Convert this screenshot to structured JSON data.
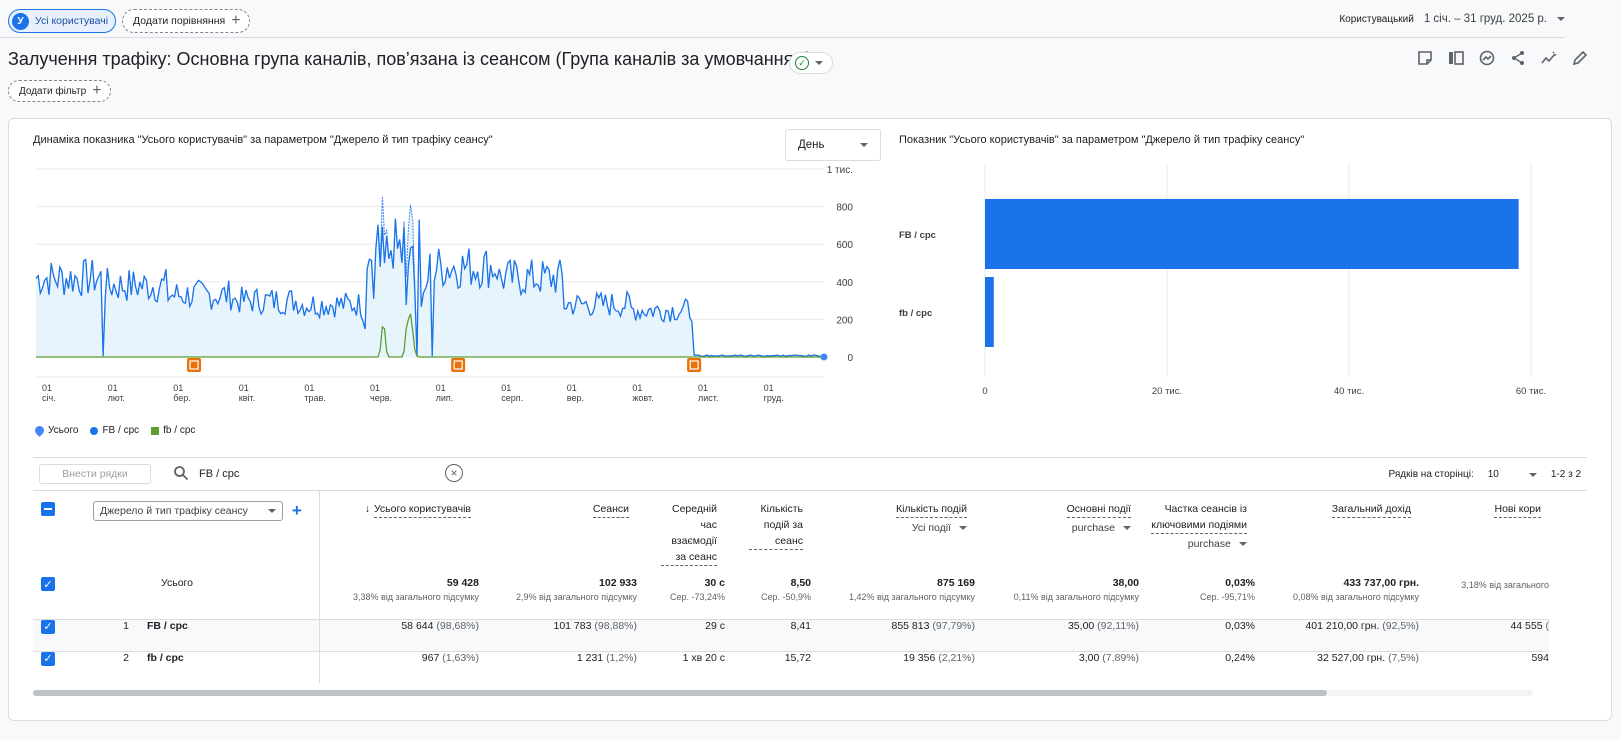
{
  "header": {
    "segment_chip": {
      "avatar": "У",
      "label": "Усі користувачі"
    },
    "compare_chip": "Додати порівняння",
    "mode": "Користувацький",
    "date_range": "1 січ. – 31 груд. 2025 р."
  },
  "report": {
    "title": "Залучення трафіку: Основна група каналів, пов’язана із сеансом (Група каналів за умовчанням)",
    "add_filter": "Додати фільтр",
    "toolbar_icons": [
      "note-icon",
      "compare-icon",
      "insights-icon",
      "share-icon",
      "trend-icon",
      "edit-icon"
    ]
  },
  "line_chart": {
    "title": "Динаміка показника \"Усього користувачів\" за параметром \"Джерело й тип трафіку сеансу\"",
    "granularity": "День",
    "y_ticks": [
      "1 тис.",
      "800",
      "600",
      "400",
      "200",
      "0"
    ],
    "x_ticks": [
      [
        "01",
        "січ."
      ],
      [
        "01",
        "лют."
      ],
      [
        "01",
        "бер."
      ],
      [
        "01",
        "квіт."
      ],
      [
        "01",
        "трав."
      ],
      [
        "01",
        "черв."
      ],
      [
        "01",
        "лип."
      ],
      [
        "01",
        "серп."
      ],
      [
        "01",
        "вер."
      ],
      [
        "01",
        "жовт."
      ],
      [
        "01",
        "лист."
      ],
      [
        "01",
        "груд."
      ]
    ],
    "legend": [
      {
        "label": "Усього",
        "color": "#4285f4",
        "shape": "drop"
      },
      {
        "label": "FB / cpc",
        "color": "#1a73e8",
        "shape": "dot"
      },
      {
        "label": "fb / cpc",
        "color": "#5a9e2f",
        "shape": "square"
      }
    ]
  },
  "bar_chart": {
    "title": "Показник \"Усього користувачів\" за параметром \"Джерело й тип трафіку сеансу\"",
    "x_ticks": [
      "0",
      "20 тис.",
      "40 тис.",
      "60 тис."
    ]
  },
  "chart_data": [
    {
      "type": "line",
      "x_range": [
        "2025-01-01",
        "2025-12-31"
      ],
      "ylim": [
        0,
        1000
      ],
      "series": [
        {
          "name": "Усього",
          "approx_profile_by_month": [
            {
              "month": "2025-01",
              "y": 420
            },
            {
              "month": "2025-02",
              "y": 380
            },
            {
              "month": "2025-03",
              "y": 330
            },
            {
              "month": "2025-04",
              "y": 300
            },
            {
              "month": "2025-05",
              "y": 280
            },
            {
              "month": "2025-06",
              "y": 560
            },
            {
              "month": "2025-07",
              "y": 480
            },
            {
              "month": "2025-08",
              "y": 420
            },
            {
              "month": "2025-09",
              "y": 280
            },
            {
              "month": "2025-10",
              "y": 250
            },
            {
              "month": "2025-11",
              "y": 8
            },
            {
              "month": "2025-12",
              "y": 4
            }
          ]
        },
        {
          "name": "FB / cpc",
          "approx_profile_by_month": [
            {
              "month": "2025-01",
              "y": 420
            },
            {
              "month": "2025-02",
              "y": 380
            },
            {
              "month": "2025-03",
              "y": 330
            },
            {
              "month": "2025-04",
              "y": 300
            },
            {
              "month": "2025-05",
              "y": 280
            },
            {
              "month": "2025-06",
              "y": 500
            },
            {
              "month": "2025-07",
              "y": 480
            },
            {
              "month": "2025-08",
              "y": 420
            },
            {
              "month": "2025-09",
              "y": 280
            },
            {
              "month": "2025-10",
              "y": 250
            },
            {
              "month": "2025-11",
              "y": 8
            },
            {
              "month": "2025-12",
              "y": 4
            }
          ]
        },
        {
          "name": "fb / cpc",
          "approx_profile_by_month": [
            {
              "month": "2025-01",
              "y": 0
            },
            {
              "month": "2025-02",
              "y": 0
            },
            {
              "month": "2025-03",
              "y": 0
            },
            {
              "month": "2025-04",
              "y": 0
            },
            {
              "month": "2025-05",
              "y": 0
            },
            {
              "month": "2025-06",
              "y": 120
            },
            {
              "month": "2025-07",
              "y": 2
            },
            {
              "month": "2025-08",
              "y": 0
            },
            {
              "month": "2025-09",
              "y": 0
            },
            {
              "month": "2025-10",
              "y": 0
            },
            {
              "month": "2025-11",
              "y": 0
            },
            {
              "month": "2025-12",
              "y": 0
            }
          ]
        }
      ],
      "annotations": [
        {
          "date": "2025-03-15",
          "label": "annotation"
        },
        {
          "date": "2025-07-15",
          "label": "annotation"
        },
        {
          "date": "2025-11-01",
          "label": "annotation"
        }
      ]
    },
    {
      "type": "bar",
      "orientation": "horizontal",
      "categories": [
        "FB / cpc",
        "fb / cpc"
      ],
      "values": [
        58644,
        967
      ],
      "xlim": [
        0,
        60000
      ]
    }
  ],
  "table": {
    "add_rows": "Вн­ести рядки",
    "search_value": "FB / cpc",
    "rows_per_page_label": "Рядків на сторінці:",
    "rows_per_page": "10",
    "pagination": "1-2 з 2",
    "dimension": "Джерело й тип трафіку сеансу",
    "columns": [
      {
        "label": "Усього користувачів",
        "sorted": true
      },
      {
        "label": "Сеанси"
      },
      {
        "label": "Середній час взаємодії за сеанс"
      },
      {
        "label": "Кількість подій за сеанс"
      },
      {
        "label": "Кількість подій",
        "filter": "Усі події"
      },
      {
        "label": "Основні події",
        "filter": "purchase"
      },
      {
        "label": "Частка сеансів із ключовими подіями",
        "filter": "purchase"
      },
      {
        "label": "Загальний дохід"
      },
      {
        "label": "Нові кори"
      }
    ],
    "totals": {
      "label": "Усього",
      "values": [
        {
          "v": "59 428",
          "s": "3,38% від загального підсумку"
        },
        {
          "v": "102 933",
          "s": "2,9% від загального підсумку"
        },
        {
          "v": "30 с",
          "s": "Сер. -73,24%"
        },
        {
          "v": "8,50",
          "s": "Сер. -50,9%"
        },
        {
          "v": "875 169",
          "s": "1,42% від загального підсумку"
        },
        {
          "v": "38,00",
          "s": "0,11% від загального підсумку"
        },
        {
          "v": "0,03%",
          "s": "Сер. -95,71%"
        },
        {
          "v": "433 737,00 грн.",
          "s": "0,08% від загального підсумку"
        },
        {
          "v": "",
          "s": "3,18% від загального"
        }
      ]
    },
    "rows": [
      {
        "n": "1",
        "name": "FB / cpc",
        "cells": [
          [
            "58 644",
            "(98,68%)"
          ],
          [
            "101 783",
            "(98,88%)"
          ],
          [
            "29 с",
            ""
          ],
          [
            "8,41",
            ""
          ],
          [
            "855 813",
            "(97,79%)"
          ],
          [
            "35,00",
            "(92,11%)"
          ],
          [
            "0,03%",
            ""
          ],
          [
            "401 210,00 грн.",
            "(92,5%)"
          ],
          [
            "44 555",
            "("
          ]
        ]
      },
      {
        "n": "2",
        "name": "fb / cpc",
        "cells": [
          [
            "967",
            "(1,63%)"
          ],
          [
            "1 231",
            "(1,2%)"
          ],
          [
            "1 хв 20 с",
            ""
          ],
          [
            "15,72",
            ""
          ],
          [
            "19 356",
            "(2,21%)"
          ],
          [
            "3,00",
            "(7,89%)"
          ],
          [
            "0,24%",
            ""
          ],
          [
            "32 527,00 грн.",
            "(7,5%)"
          ],
          [
            "594",
            ""
          ]
        ]
      }
    ]
  }
}
